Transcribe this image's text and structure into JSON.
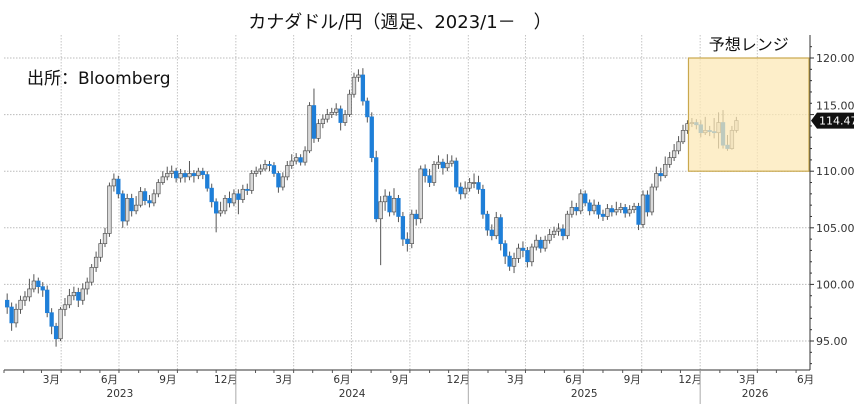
{
  "chart_data": {
    "type": "candlestick",
    "title": "カナダドル/円（週足、2023/1－　）",
    "source": "出所：Bloomberg",
    "frequency": "weekly",
    "first_candle_date": "2023-01-06",
    "open_rule": "open = previous close",
    "first_open": 98.6,
    "close": [
      98.0,
      96.6,
      97.8,
      98.6,
      98.9,
      99.6,
      100.3,
      99.8,
      99.5,
      97.5,
      96.3,
      95.2,
      97.8,
      98.2,
      99.0,
      99.3,
      98.6,
      99.6,
      100.2,
      101.5,
      102.4,
      103.6,
      104.5,
      108.7,
      109.3,
      108.0,
      105.6,
      107.6,
      106.5,
      107.0,
      108.2,
      107.4,
      107.2,
      108.0,
      109.0,
      109.5,
      109.8,
      110.0,
      109.4,
      109.8,
      109.5,
      109.8,
      109.6,
      110.0,
      109.7,
      108.5,
      107.3,
      106.3,
      106.5,
      107.6,
      107.2,
      108.0,
      107.5,
      108.4,
      108.3,
      109.8,
      110.0,
      110.2,
      110.6,
      110.5,
      109.8,
      108.6,
      109.5,
      110.5,
      110.9,
      111.2,
      110.8,
      111.8,
      115.8,
      112.9,
      114.2,
      114.6,
      115.0,
      115.2,
      115.5,
      114.3,
      115.0,
      116.8,
      118.3,
      118.5,
      116.2,
      114.8,
      111.2,
      105.8,
      107.3,
      107.8,
      106.4,
      107.6,
      106.0,
      104.0,
      103.6,
      106.2,
      105.8,
      110.2,
      109.6,
      109.0,
      110.6,
      110.8,
      110.3,
      110.7,
      110.9,
      108.6,
      108.0,
      108.5,
      109.0,
      109.0,
      108.4,
      106.2,
      104.8,
      104.3,
      105.9,
      103.6,
      102.5,
      101.6,
      102.3,
      103.2,
      103.0,
      102.0,
      103.3,
      103.9,
      103.2,
      103.9,
      104.4,
      104.7,
      104.9,
      104.3,
      106.2,
      106.8,
      106.5,
      108.0,
      107.2,
      106.5,
      107.0,
      106.2,
      106.0,
      106.7,
      106.4,
      106.6,
      106.8,
      106.3,
      106.6,
      106.9,
      105.3,
      107.9,
      106.4,
      108.6,
      109.8,
      109.6,
      110.6,
      111.2,
      111.8,
      112.6,
      113.6,
      114.2,
      114.3,
      114.1,
      113.4,
      113.6,
      113.5,
      113.4,
      114.3,
      112.3,
      112.0,
      113.6,
      114.47
    ],
    "high": [
      99.2,
      98.4,
      98.3,
      99.0,
      99.4,
      100.5,
      100.9,
      100.6,
      100.2,
      99.9,
      97.9,
      96.6,
      98.0,
      98.8,
      99.6,
      99.8,
      99.7,
      100.1,
      100.6,
      101.8,
      102.9,
      104.0,
      105.0,
      109.0,
      109.8,
      109.6,
      108.3,
      108.0,
      108.0,
      107.8,
      108.6,
      108.5,
      107.9,
      108.4,
      109.3,
      110.0,
      110.4,
      110.5,
      110.3,
      110.2,
      110.1,
      110.9,
      110.1,
      110.3,
      110.3,
      110.0,
      108.9,
      107.6,
      107.3,
      107.9,
      108.2,
      108.4,
      108.4,
      108.8,
      108.9,
      110.1,
      110.4,
      110.6,
      111.0,
      110.9,
      110.8,
      110.0,
      109.9,
      110.9,
      111.5,
      111.6,
      111.5,
      112.2,
      116.1,
      117.3,
      114.6,
      115.0,
      115.5,
      115.6,
      116.0,
      115.8,
      115.4,
      117.2,
      118.7,
      119.0,
      119.1,
      116.5,
      115.2,
      111.8,
      107.8,
      108.4,
      108.2,
      108.5,
      107.9,
      106.4,
      104.6,
      106.6,
      106.6,
      110.5,
      110.6,
      110.2,
      110.9,
      111.4,
      111.1,
      111.5,
      111.4,
      111.2,
      109.0,
      109.1,
      109.4,
      109.8,
      109.6,
      108.8,
      106.5,
      105.3,
      106.4,
      106.2,
      103.9,
      102.9,
      102.8,
      103.6,
      103.8,
      103.3,
      103.6,
      104.4,
      104.2,
      104.3,
      104.9,
      105.1,
      105.4,
      105.3,
      106.5,
      107.4,
      107.2,
      108.4,
      108.3,
      107.5,
      107.5,
      107.3,
      106.6,
      107.1,
      107.0,
      107.3,
      107.2,
      107.1,
      107.0,
      107.2,
      107.2,
      108.3,
      108.3,
      108.9,
      110.4,
      110.3,
      111.3,
      111.7,
      112.4,
      113.1,
      114.1,
      114.5,
      114.7,
      114.6,
      114.5,
      114.8,
      114.0,
      114.7,
      115.2,
      115.4,
      113.2,
      114.0,
      114.8
    ],
    "low": [
      97.4,
      95.9,
      96.2,
      97.4,
      98.1,
      98.5,
      99.3,
      99.2,
      98.9,
      97.1,
      95.6,
      94.5,
      95.0,
      97.2,
      97.9,
      98.6,
      98.0,
      98.2,
      99.1,
      99.9,
      101.1,
      102.0,
      103.3,
      104.2,
      108.2,
      107.6,
      105.0,
      105.2,
      106.0,
      106.2,
      106.8,
      107.0,
      106.8,
      106.9,
      107.7,
      108.8,
      109.2,
      109.4,
      109.0,
      109.0,
      109.0,
      109.2,
      109.0,
      109.3,
      109.3,
      108.2,
      106.8,
      104.6,
      106.0,
      106.2,
      106.8,
      106.9,
      106.2,
      107.2,
      107.9,
      108.0,
      109.5,
      109.7,
      110.0,
      110.0,
      109.5,
      108.1,
      108.3,
      109.2,
      110.2,
      110.6,
      110.5,
      110.5,
      111.6,
      112.5,
      112.6,
      113.8,
      114.3,
      114.7,
      114.9,
      113.6,
      114.0,
      114.8,
      116.5,
      117.9,
      115.8,
      114.3,
      110.8,
      105.5,
      101.7,
      106.5,
      106.0,
      106.1,
      105.5,
      103.4,
      102.9,
      103.2,
      105.2,
      105.4,
      109.0,
      108.6,
      108.7,
      110.2,
      109.7,
      110.0,
      110.4,
      108.2,
      107.5,
      107.6,
      108.2,
      108.5,
      108.0,
      105.8,
      104.3,
      103.9,
      104.0,
      103.0,
      101.8,
      101.2,
      101.0,
      101.9,
      102.4,
      101.5,
      101.6,
      103.0,
      102.8,
      102.9,
      103.6,
      104.1,
      104.3,
      103.9,
      104.0,
      105.9,
      106.1,
      106.2,
      106.9,
      106.1,
      106.2,
      105.8,
      105.6,
      105.7,
      106.0,
      106.1,
      106.3,
      105.9,
      106.0,
      106.3,
      104.8,
      105.0,
      106.0,
      106.1,
      108.3,
      109.1,
      109.4,
      110.3,
      110.9,
      111.5,
      112.4,
      113.3,
      113.9,
      113.7,
      113.0,
      113.2,
      113.1,
      112.9,
      112.0,
      112.0,
      111.8,
      111.9,
      113.4
    ],
    "last_price_label": "114.47",
    "forecast_range": {
      "label": "予想レンジ",
      "low": 110.0,
      "high": 120.0,
      "start": "2025-12",
      "end": "2026-06"
    },
    "y_axis": {
      "position": "right",
      "ylim": [
        92.4,
        121.6
      ],
      "ticks": [
        95,
        100,
        105,
        110,
        115,
        120
      ],
      "tick_labels": [
        "95.00",
        "100.00",
        "105.00",
        "110.00",
        "115.00",
        "120.00"
      ]
    },
    "x_axis": {
      "month_labels": [
        {
          "label": "3月",
          "month": "2023-03"
        },
        {
          "label": "6月",
          "month": "2023-06"
        },
        {
          "label": "9月",
          "month": "2023-09"
        },
        {
          "label": "12月",
          "month": "2023-12"
        },
        {
          "label": "3月",
          "month": "2024-03"
        },
        {
          "label": "6月",
          "month": "2024-06"
        },
        {
          "label": "9月",
          "month": "2024-09"
        },
        {
          "label": "12月",
          "month": "2024-12"
        },
        {
          "label": "3月",
          "month": "2025-03"
        },
        {
          "label": "6月",
          "month": "2025-06"
        },
        {
          "label": "9月",
          "month": "2025-09"
        },
        {
          "label": "12月",
          "month": "2025-12"
        },
        {
          "label": "3月",
          "month": "2026-03"
        },
        {
          "label": "6月",
          "month": "2026-06"
        }
      ],
      "years": [
        "2023",
        "2024",
        "2025",
        "2026"
      ]
    },
    "grid": true,
    "colors": {
      "up_fill": "#d9d9d9",
      "up_stroke": "#555555",
      "down_fill": "#1f7fd8",
      "range_fill": "#fce8b4",
      "range_stroke": "#c9a84e",
      "price_tag": "#111111"
    }
  }
}
